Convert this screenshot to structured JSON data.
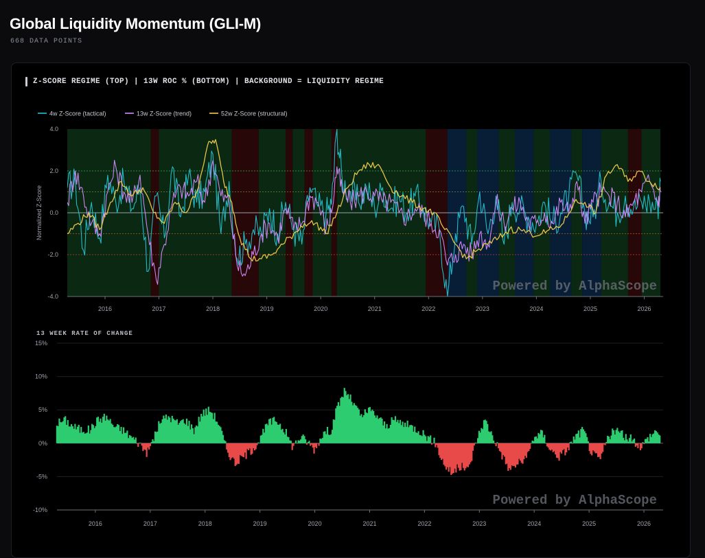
{
  "page": {
    "title": "Global Liquidity Momentum (GLI-M)",
    "subtitle": "668 DATA POINTS"
  },
  "card": {
    "header": "Z-SCORE REGIME (TOP) | 13W ROC % (BOTTOM) | BACKGROUND = LIQUIDITY REGIME"
  },
  "colors": {
    "series_4w": "#22c4d2",
    "series_13w": "#d48cff",
    "series_52w": "#f2cc4b",
    "roc_positive": "#2ecc71",
    "roc_negative": "#e84a4a",
    "regime_green": "#0c2a14",
    "regime_red": "#2a0708",
    "regime_blue": "#08203a"
  },
  "chart_data": [
    {
      "type": "line",
      "title": "Z-Score Regime",
      "ylabel": "Normalized Z-Score",
      "ylim": [
        -4.0,
        4.0
      ],
      "yticks": [
        "4.0",
        "2.0",
        "0.0",
        "-2.0",
        "-4.0"
      ],
      "xlim": [
        2015.3,
        2026.35
      ],
      "xticks": [
        "2016",
        "2017",
        "2018",
        "2019",
        "2020",
        "2021",
        "2022",
        "2023",
        "2024",
        "2025",
        "2026"
      ],
      "reference_lines": [
        2.0,
        1.0,
        0.0,
        -1.0,
        -2.0
      ],
      "legend": [
        "4w Z-Score (tactical)",
        "13w Z-Score (trend)",
        "52w Z-Score (structural)"
      ],
      "watermark": "Powered by AlphaScope",
      "regimes": [
        {
          "start": 2015.3,
          "end": 2016.85,
          "regime": "green"
        },
        {
          "start": 2016.85,
          "end": 2017.0,
          "regime": "red"
        },
        {
          "start": 2017.0,
          "end": 2018.35,
          "regime": "green"
        },
        {
          "start": 2018.35,
          "end": 2018.85,
          "regime": "red"
        },
        {
          "start": 2018.85,
          "end": 2019.35,
          "regime": "green"
        },
        {
          "start": 2019.35,
          "end": 2019.48,
          "regime": "red"
        },
        {
          "start": 2019.48,
          "end": 2019.7,
          "regime": "green"
        },
        {
          "start": 2019.7,
          "end": 2019.85,
          "regime": "red"
        },
        {
          "start": 2019.85,
          "end": 2020.2,
          "regime": "green"
        },
        {
          "start": 2020.2,
          "end": 2020.3,
          "regime": "red"
        },
        {
          "start": 2020.3,
          "end": 2021.95,
          "regime": "green"
        },
        {
          "start": 2021.95,
          "end": 2022.35,
          "regime": "red"
        },
        {
          "start": 2022.35,
          "end": 2022.7,
          "regime": "blue"
        },
        {
          "start": 2022.7,
          "end": 2022.9,
          "regime": "green"
        },
        {
          "start": 2022.9,
          "end": 2023.3,
          "regime": "blue"
        },
        {
          "start": 2023.3,
          "end": 2023.6,
          "regime": "green"
        },
        {
          "start": 2023.6,
          "end": 2023.95,
          "regime": "blue"
        },
        {
          "start": 2023.95,
          "end": 2024.25,
          "regime": "green"
        },
        {
          "start": 2024.25,
          "end": 2024.65,
          "regime": "blue"
        },
        {
          "start": 2024.65,
          "end": 2024.85,
          "regime": "green"
        },
        {
          "start": 2024.85,
          "end": 2025.2,
          "regime": "blue"
        },
        {
          "start": 2025.2,
          "end": 2025.7,
          "regime": "green"
        },
        {
          "start": 2025.7,
          "end": 2025.95,
          "regime": "red"
        },
        {
          "start": 2025.95,
          "end": 2026.3,
          "regime": "green"
        }
      ],
      "series": [
        {
          "name": "4w Z-Score (tactical)",
          "x": [
            2015.3,
            2015.45,
            2015.6,
            2015.75,
            2015.9,
            2016.05,
            2016.2,
            2016.35,
            2016.5,
            2016.65,
            2016.8,
            2016.95,
            2017.1,
            2017.25,
            2017.4,
            2017.55,
            2017.7,
            2017.85,
            2018.0,
            2018.15,
            2018.3,
            2018.45,
            2018.6,
            2018.75,
            2018.9,
            2019.05,
            2019.2,
            2019.35,
            2019.5,
            2019.65,
            2019.8,
            2019.95,
            2020.1,
            2020.2,
            2020.3,
            2020.4,
            2020.55,
            2020.7,
            2020.85,
            2021.0,
            2021.15,
            2021.3,
            2021.45,
            2021.6,
            2021.75,
            2021.9,
            2022.05,
            2022.2,
            2022.35,
            2022.5,
            2022.65,
            2022.8,
            2022.95,
            2023.1,
            2023.25,
            2023.4,
            2023.55,
            2023.7,
            2023.85,
            2024.0,
            2024.15,
            2024.3,
            2024.45,
            2024.6,
            2024.75,
            2024.9,
            2025.05,
            2025.2,
            2025.35,
            2025.5,
            2025.65,
            2025.8,
            2025.95,
            2026.1,
            2026.25,
            2026.3
          ],
          "values": [
            1.2,
            1.5,
            -1.8,
            0.5,
            -1.2,
            1.8,
            0.5,
            1.5,
            0.2,
            1.2,
            -2.8,
            0.8,
            -1.2,
            2.2,
            -0.2,
            1.8,
            0.5,
            1.0,
            2.8,
            -1.0,
            1.5,
            -2.2,
            -1.5,
            -0.8,
            -1.0,
            0.2,
            -1.0,
            0.5,
            -0.8,
            -1.5,
            1.2,
            0.3,
            0.0,
            0.4,
            4.0,
            1.5,
            1.0,
            0.5,
            1.2,
            0.2,
            1.2,
            0.2,
            0.8,
            0.0,
            0.8,
            0.2,
            -0.5,
            -0.8,
            -4.0,
            -1.0,
            0.3,
            -1.5,
            1.0,
            -1.0,
            0.8,
            -1.5,
            0.5,
            0.2,
            -0.2,
            -0.5,
            0.5,
            -0.5,
            0.0,
            0.8,
            1.8,
            0.0,
            -0.2,
            1.5,
            0.5,
            0.0,
            0.8,
            0.2,
            0.5,
            0.5,
            0.2,
            1.5
          ]
        },
        {
          "name": "13w Z-Score (trend)",
          "x": [
            2015.3,
            2015.45,
            2015.6,
            2015.75,
            2015.9,
            2016.05,
            2016.2,
            2016.35,
            2016.5,
            2016.65,
            2016.8,
            2016.95,
            2017.1,
            2017.25,
            2017.4,
            2017.55,
            2017.7,
            2017.85,
            2018.0,
            2018.15,
            2018.3,
            2018.45,
            2018.6,
            2018.75,
            2018.9,
            2019.05,
            2019.2,
            2019.35,
            2019.5,
            2019.65,
            2019.8,
            2019.95,
            2020.1,
            2020.2,
            2020.3,
            2020.4,
            2020.55,
            2020.7,
            2020.85,
            2021.0,
            2021.15,
            2021.3,
            2021.45,
            2021.6,
            2021.75,
            2021.9,
            2022.05,
            2022.2,
            2022.35,
            2022.5,
            2022.65,
            2022.8,
            2022.95,
            2023.1,
            2023.25,
            2023.4,
            2023.55,
            2023.7,
            2023.85,
            2024.0,
            2024.15,
            2024.3,
            2024.45,
            2024.6,
            2024.75,
            2024.9,
            2025.05,
            2025.2,
            2025.35,
            2025.5,
            2025.65,
            2025.8,
            2025.95,
            2026.1,
            2026.25,
            2026.3
          ],
          "values": [
            0.5,
            2.0,
            0.8,
            -0.5,
            -1.0,
            1.0,
            2.2,
            1.0,
            0.5,
            1.8,
            -1.0,
            -3.2,
            -1.5,
            0.5,
            1.2,
            0.8,
            1.5,
            0.5,
            2.5,
            0.8,
            0.5,
            -2.5,
            -3.0,
            -2.0,
            -1.0,
            -0.5,
            -1.2,
            0.2,
            -0.8,
            -0.5,
            0.8,
            0.5,
            -0.8,
            0.0,
            2.2,
            1.0,
            0.5,
            0.8,
            1.0,
            0.8,
            0.5,
            0.5,
            0.0,
            -0.2,
            0.2,
            0.0,
            -0.5,
            -0.8,
            -2.5,
            -2.0,
            -1.5,
            -2.0,
            -1.0,
            -1.5,
            0.5,
            -0.5,
            0.2,
            0.5,
            -0.5,
            -0.5,
            0.0,
            -0.5,
            0.5,
            0.0,
            1.5,
            -0.5,
            0.5,
            1.0,
            0.8,
            0.5,
            -0.2,
            0.5,
            1.0,
            1.5,
            0.5,
            1.0
          ]
        },
        {
          "name": "52w Z-Score (structural)",
          "x": [
            2015.3,
            2015.5,
            2015.7,
            2015.9,
            2016.1,
            2016.3,
            2016.5,
            2016.7,
            2016.9,
            2017.1,
            2017.3,
            2017.5,
            2017.7,
            2017.9,
            2018.05,
            2018.2,
            2018.35,
            2018.5,
            2018.7,
            2018.9,
            2019.1,
            2019.3,
            2019.5,
            2019.7,
            2019.9,
            2020.1,
            2020.3,
            2020.5,
            2020.7,
            2020.9,
            2021.1,
            2021.3,
            2021.5,
            2021.7,
            2021.9,
            2022.1,
            2022.3,
            2022.5,
            2022.7,
            2022.9,
            2023.1,
            2023.3,
            2023.5,
            2023.7,
            2023.9,
            2024.1,
            2024.3,
            2024.5,
            2024.7,
            2024.9,
            2025.1,
            2025.3,
            2025.5,
            2025.7,
            2025.9,
            2026.1,
            2026.3
          ],
          "values": [
            -1.0,
            -0.5,
            0.0,
            -0.8,
            0.5,
            1.5,
            0.8,
            1.2,
            0.0,
            -0.5,
            0.5,
            0.0,
            1.0,
            3.2,
            3.5,
            1.5,
            0.5,
            -1.2,
            -2.2,
            -2.2,
            -2.0,
            -1.5,
            -1.0,
            -0.5,
            -0.5,
            -1.0,
            0.0,
            1.2,
            2.0,
            2.3,
            2.2,
            1.2,
            0.8,
            0.5,
            0.2,
            0.0,
            -0.8,
            -1.5,
            -2.2,
            -1.8,
            -1.5,
            -1.2,
            -0.8,
            -0.8,
            -1.0,
            -1.0,
            -0.8,
            -0.5,
            0.5,
            0.5,
            0.0,
            1.8,
            2.3,
            1.5,
            2.0,
            1.5,
            1.2
          ]
        }
      ]
    },
    {
      "type": "bar",
      "title": "13 WEEK RATE OF CHANGE",
      "ylim": [
        -10,
        15
      ],
      "yticks": [
        "15%",
        "10%",
        "5%",
        "0%",
        "-5%",
        "-10%"
      ],
      "xlim": [
        2015.3,
        2026.35
      ],
      "xticks": [
        "2016",
        "2017",
        "2018",
        "2019",
        "2020",
        "2021",
        "2022",
        "2023",
        "2024",
        "2025",
        "2026"
      ],
      "watermark": "Powered by AlphaScope",
      "x": [
        2015.3,
        2015.45,
        2015.6,
        2015.75,
        2015.9,
        2016.05,
        2016.2,
        2016.35,
        2016.5,
        2016.65,
        2016.8,
        2016.95,
        2017.05,
        2017.2,
        2017.35,
        2017.5,
        2017.65,
        2017.8,
        2017.95,
        2018.1,
        2018.25,
        2018.4,
        2018.55,
        2018.7,
        2018.85,
        2019.0,
        2019.15,
        2019.3,
        2019.45,
        2019.6,
        2019.75,
        2019.9,
        2020.0,
        2020.15,
        2020.3,
        2020.4,
        2020.55,
        2020.7,
        2020.85,
        2021.0,
        2021.15,
        2021.3,
        2021.45,
        2021.6,
        2021.75,
        2021.9,
        2022.05,
        2022.2,
        2022.35,
        2022.5,
        2022.65,
        2022.8,
        2022.95,
        2023.1,
        2023.25,
        2023.4,
        2023.55,
        2023.7,
        2023.85,
        2024.0,
        2024.15,
        2024.3,
        2024.45,
        2024.6,
        2024.75,
        2024.9,
        2025.05,
        2025.2,
        2025.35,
        2025.5,
        2025.65,
        2025.8,
        2025.95,
        2026.1,
        2026.25,
        2026.3
      ],
      "values": [
        3.0,
        3.5,
        2.5,
        2.0,
        2.0,
        3.5,
        4.0,
        2.5,
        2.0,
        1.0,
        0.0,
        -1.5,
        0.5,
        3.5,
        4.0,
        3.0,
        3.5,
        2.0,
        4.5,
        5.0,
        3.0,
        -1.0,
        -3.0,
        -2.0,
        -1.0,
        0.5,
        3.0,
        3.5,
        2.0,
        -0.5,
        1.0,
        0.0,
        -1.0,
        1.5,
        2.0,
        5.0,
        8.0,
        6.0,
        4.0,
        5.0,
        4.0,
        2.5,
        3.5,
        3.0,
        2.5,
        2.0,
        1.0,
        0.0,
        -3.0,
        -4.5,
        -3.5,
        -4.0,
        0.5,
        3.5,
        1.0,
        -1.5,
        -4.0,
        -3.0,
        -2.5,
        1.0,
        1.5,
        -1.0,
        -2.0,
        -1.0,
        1.0,
        2.0,
        -1.5,
        -2.5,
        1.0,
        2.0,
        1.0,
        0.5,
        -0.5,
        1.0,
        2.0,
        1.0
      ]
    }
  ]
}
